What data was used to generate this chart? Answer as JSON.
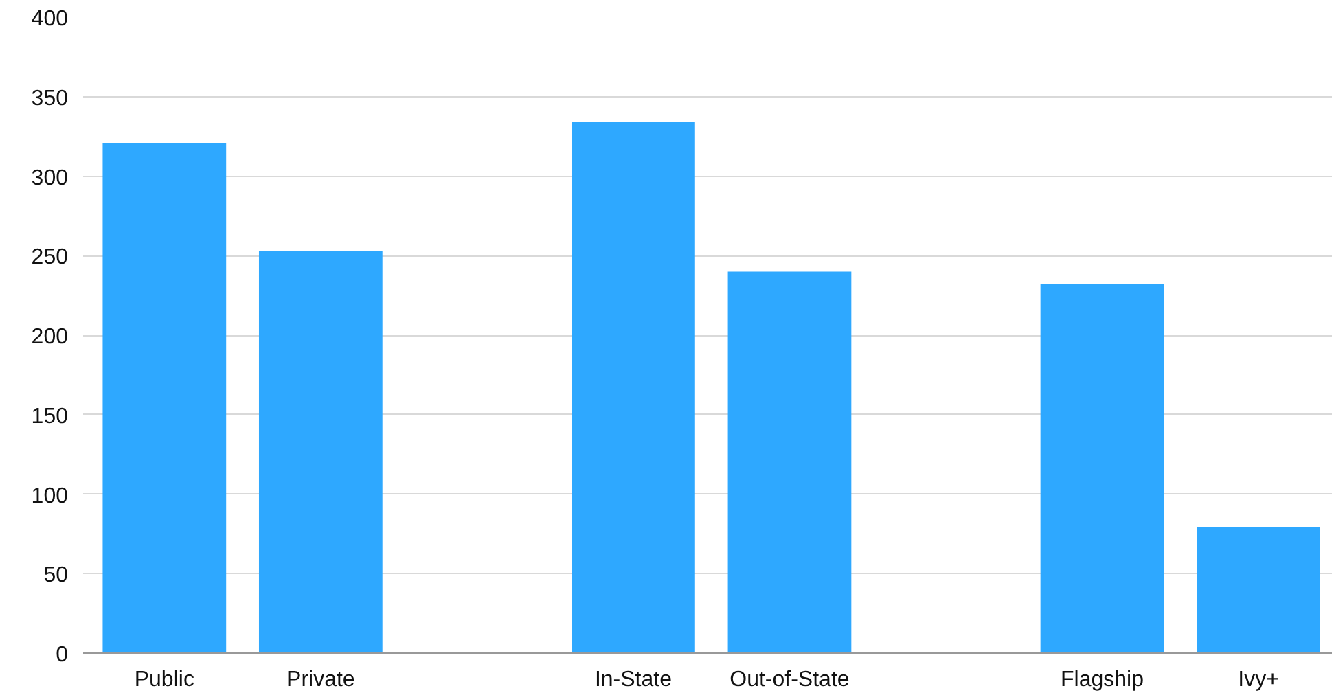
{
  "chart_data": {
    "type": "bar",
    "categories": [
      "Public",
      "Private",
      null,
      "In-State",
      "Out-of-State",
      null,
      "Flagship",
      "Ivy+"
    ],
    "values": [
      321,
      253,
      null,
      334,
      240,
      null,
      232,
      79
    ],
    "color": "#2ea8ff",
    "ylim": [
      0,
      400
    ],
    "yticks": [
      0,
      50,
      100,
      150,
      200,
      250,
      300,
      350,
      400
    ],
    "grid": "y"
  }
}
